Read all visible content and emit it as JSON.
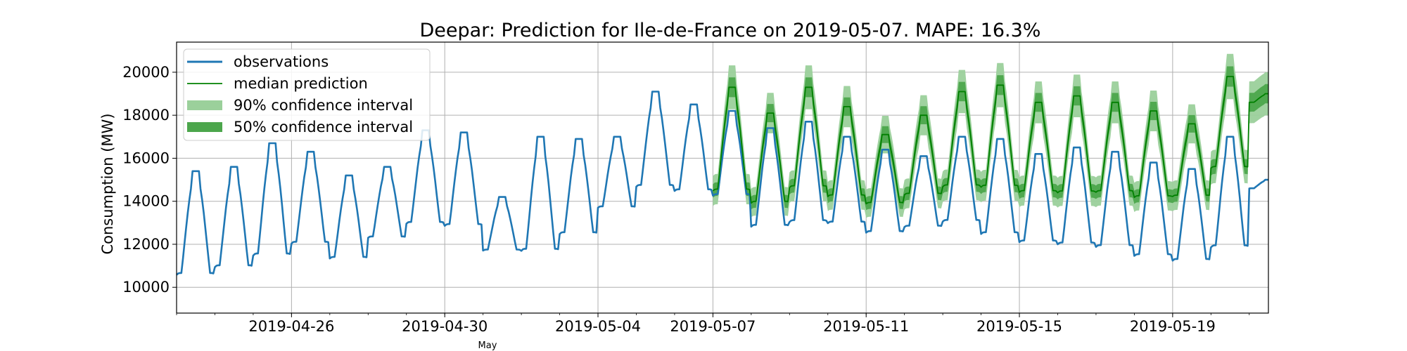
{
  "chart_data": {
    "type": "line",
    "title": "Deepar: Prediction for Ile-de-France on 2019-05-07. MAPE: 16.3%",
    "xlabel": "",
    "ylabel": "Consumption (MW)",
    "xlim": [
      "2019-04-23",
      "2019-05-21"
    ],
    "ylim": [
      8800,
      21400
    ],
    "grid": true,
    "legend_position": "upper-left",
    "yticks": [
      10000,
      12000,
      14000,
      16000,
      18000,
      20000
    ],
    "xticks": [
      "2019-04-26",
      "2019-04-30",
      "2019-05-04",
      "2019-05-07",
      "2019-05-11",
      "2019-05-15",
      "2019-05-19"
    ],
    "minor_label": "May",
    "legend": {
      "observations": "observations",
      "median": "median prediction",
      "ci90": "90% confidence interval",
      "ci50": "50% confidence interval"
    },
    "colors": {
      "observations": "#1f77b4",
      "median": "#008000",
      "ci90": "#9bd09b",
      "ci50": "#4ca64c",
      "grid": "#b0b0b0"
    },
    "observations": {
      "name": "observations",
      "x": [
        "2019-04-23",
        "2019-04-24",
        "2019-04-25",
        "2019-04-26",
        "2019-04-27",
        "2019-04-28",
        "2019-04-29",
        "2019-04-30",
        "2019-05-01",
        "2019-05-02",
        "2019-05-03",
        "2019-05-04",
        "2019-05-05",
        "2019-05-06",
        "2019-05-07",
        "2019-05-08",
        "2019-05-09",
        "2019-05-10",
        "2019-05-11",
        "2019-05-12",
        "2019-05-13",
        "2019-05-14",
        "2019-05-15",
        "2019-05-16",
        "2019-05-17",
        "2019-05-18",
        "2019-05-19",
        "2019-05-20",
        "2019-05-21"
      ],
      "daily_min": [
        9400,
        9800,
        10200,
        11000,
        10400,
        11500,
        11900,
        11800,
        11100,
        10400,
        11400,
        12900,
        13600,
        13500,
        13300,
        11700,
        11900,
        12000,
        11600,
        12000,
        12100,
        11400,
        11100,
        10900,
        10800,
        10400,
        10200,
        10600,
        14500
      ],
      "daily_max": [
        15400,
        15600,
        16700,
        16300,
        15200,
        15600,
        17300,
        17200,
        14200,
        17000,
        16900,
        17000,
        19100,
        18500,
        18200,
        17400,
        17700,
        17000,
        16400,
        16100,
        17000,
        16900,
        16200,
        16500,
        16300,
        15800,
        15500,
        17000,
        15000
      ]
    },
    "prediction": {
      "name": "median prediction",
      "x": [
        "2019-05-07",
        "2019-05-08",
        "2019-05-09",
        "2019-05-10",
        "2019-05-11",
        "2019-05-12",
        "2019-05-13",
        "2019-05-14",
        "2019-05-15",
        "2019-05-16",
        "2019-05-17",
        "2019-05-18",
        "2019-05-19",
        "2019-05-20",
        "2019-05-21"
      ],
      "daily_min": [
        13300,
        12900,
        13500,
        13200,
        13100,
        13400,
        13600,
        13500,
        13400,
        13300,
        13400,
        13200,
        13400,
        14500,
        18500
      ],
      "daily_max": [
        19300,
        18100,
        19300,
        18400,
        17100,
        18000,
        19100,
        19400,
        18600,
        18900,
        18600,
        18200,
        17600,
        19800,
        19000
      ]
    },
    "ci50_halfwidth": 450,
    "ci90_halfwidth": 1000
  }
}
